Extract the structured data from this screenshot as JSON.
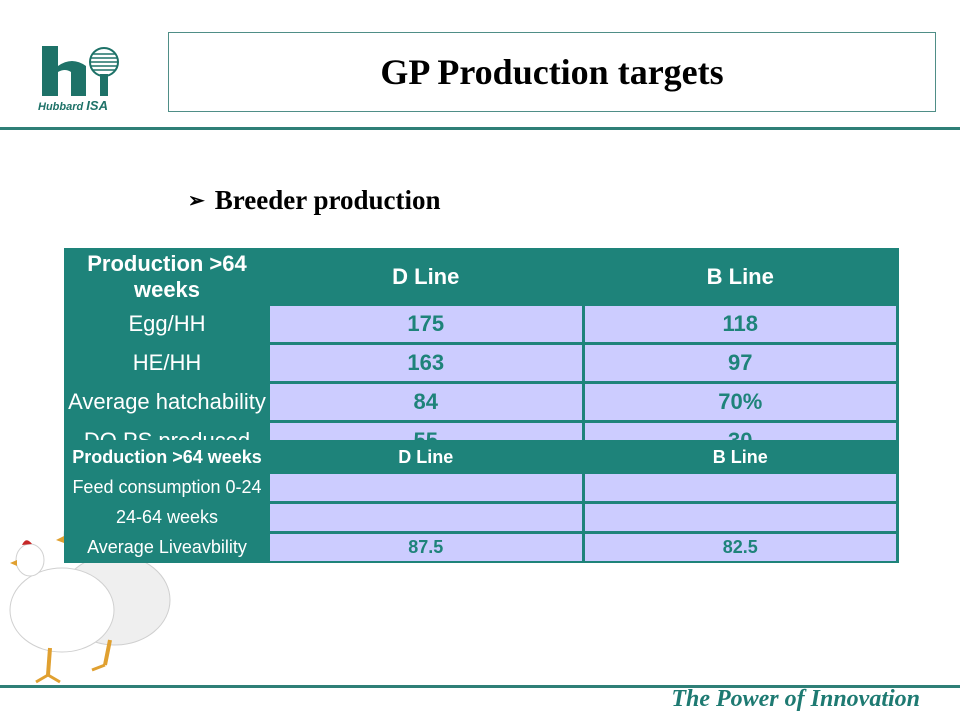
{
  "logo": {
    "brand": "Hubbard",
    "brand_suffix": "ISA"
  },
  "title": "GP Production targets",
  "bullet": {
    "arrow": "➢",
    "text": "Breeder production"
  },
  "footer": "The Power of Innovation",
  "colors": {
    "teal": "#1e837a",
    "cell": "#ccccff",
    "rule": "#2f7f77"
  },
  "table1": {
    "headers": [
      "Production >64 weeks",
      "D Line",
      "B Line"
    ],
    "rows": [
      {
        "label": "Egg/HH",
        "d": "175",
        "b": "118"
      },
      {
        "label": "HE/HH",
        "d": "163",
        "b": "97"
      },
      {
        "label": "Average hatchability",
        "d": "84",
        "b": "70%"
      },
      {
        "label": "DO PS produced",
        "d": "55",
        "b": "30"
      }
    ]
  },
  "table2": {
    "headers": [
      "Production >64 weeks",
      "D Line",
      "B Line"
    ],
    "rows": [
      {
        "label": "Feed consumption 0-24",
        "d": "",
        "b": ""
      },
      {
        "label": "24-64 weeks",
        "d": "",
        "b": ""
      },
      {
        "label": "Average Liveavbility",
        "d": "87.5",
        "b": "82.5"
      }
    ]
  }
}
